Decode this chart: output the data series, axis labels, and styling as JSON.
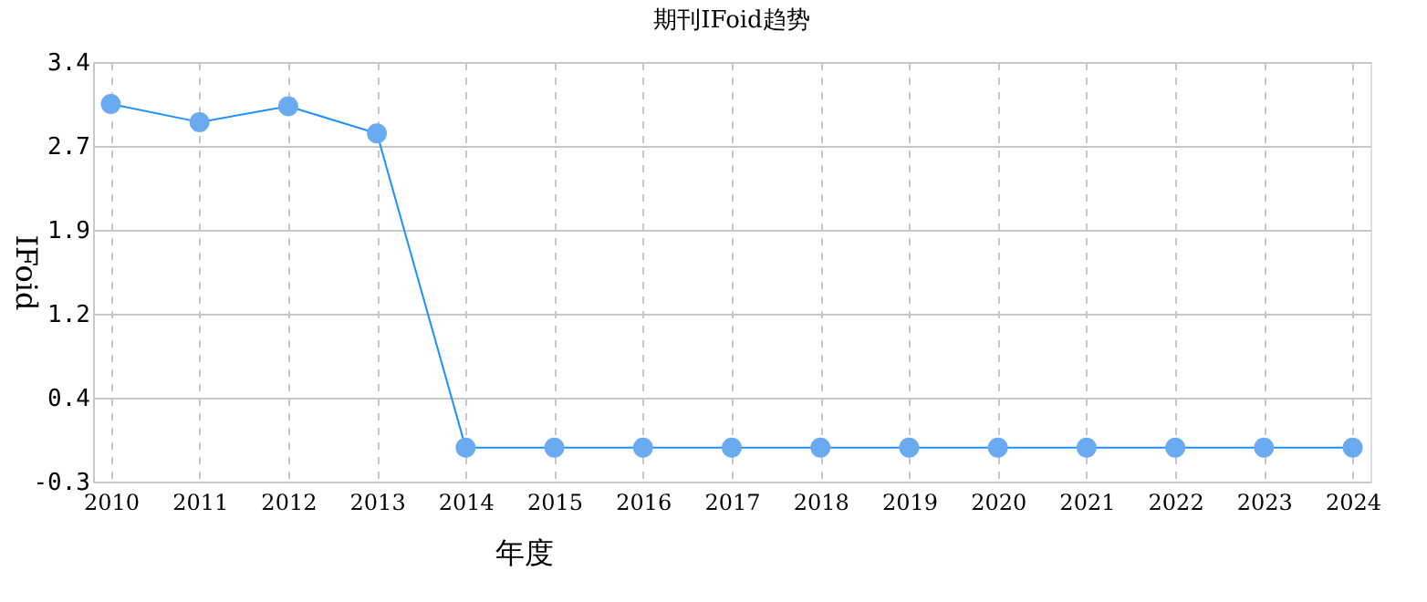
{
  "chart_data": {
    "type": "line",
    "title": "期刊IFoid趋势",
    "xlabel": "年度",
    "ylabel": "IFoid",
    "categories": [
      "2010",
      "2011",
      "2012",
      "2013",
      "2014",
      "2015",
      "2016",
      "2017",
      "2018",
      "2019",
      "2020",
      "2021",
      "2022",
      "2023",
      "2024"
    ],
    "series": [
      {
        "color": "#1e90ff",
        "values": [
          3.03,
          2.87,
          3.01,
          2.77,
          0,
          0,
          0,
          0,
          0,
          0,
          0,
          0,
          0,
          0,
          0
        ]
      }
    ],
    "ylim": [
      -0.3,
      3.4
    ],
    "yticks": [
      -0.3,
      {
        "value": 0.44,
        "label": "0.4"
      },
      {
        "value": 1.18,
        "label": "1.2"
      },
      {
        "value": 1.92,
        "label": "1.9"
      },
      {
        "value": 2.66,
        "label": "2.7"
      },
      3.4
    ],
    "grid": true,
    "marker": "circle",
    "line_style": "solid"
  }
}
